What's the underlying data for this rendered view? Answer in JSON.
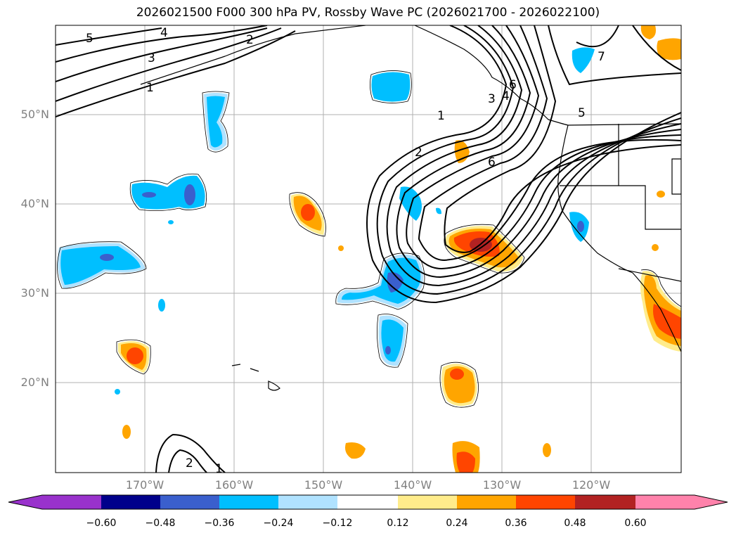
{
  "title": "2026021500 F000 300 hPa PV, Rossby Wave PC (2026021700 - 2026022100)",
  "longitude_labels": [
    "170°W",
    "160°W",
    "150°W",
    "140°W",
    "130°W",
    "120°W"
  ],
  "latitude_labels": [
    "50°N",
    "40°N",
    "30°N",
    "20°N"
  ],
  "colorbar": {
    "tick_labels": [
      "−0.60",
      "−0.48",
      "−0.36",
      "−0.24",
      "−0.12",
      "0.12",
      "0.24",
      "0.36",
      "0.48",
      "0.60"
    ],
    "colors": [
      "#9932cc",
      "#00008b",
      "#3a5fcd",
      "#00bfff",
      "#b0e2ff",
      "#ffffff",
      "#ffec8b",
      "#ffa500",
      "#ff4500",
      "#b22222",
      "#ff82ab"
    ]
  },
  "contour_labels": [
    "5",
    "4",
    "3",
    "1",
    "2",
    "1",
    "2",
    "3",
    "4",
    "6",
    "7",
    "5",
    "6",
    "2",
    "1"
  ]
}
